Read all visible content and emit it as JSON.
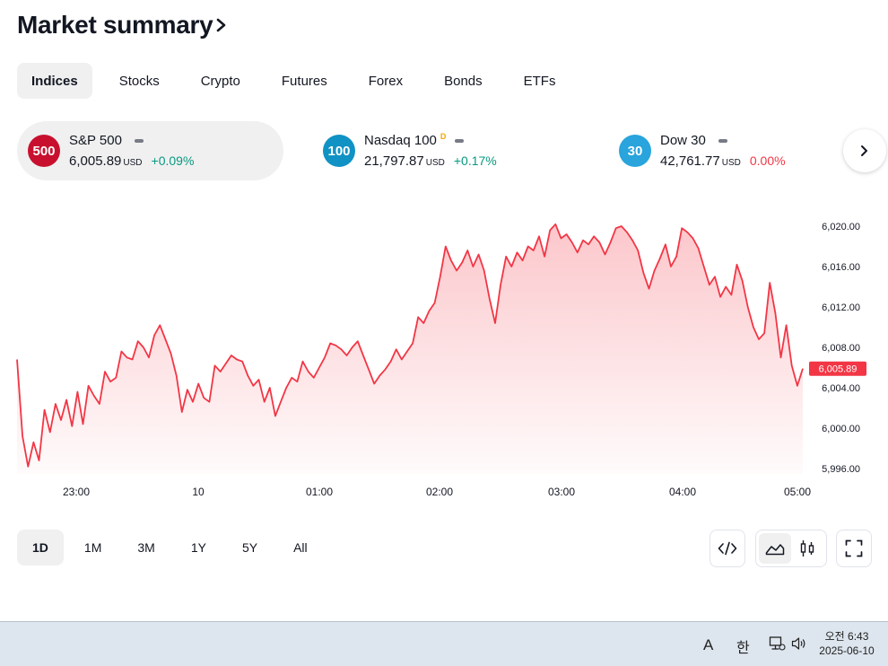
{
  "header": {
    "title": "Market summary"
  },
  "tabs": [
    {
      "label": "Indices",
      "active": true
    },
    {
      "label": "Stocks"
    },
    {
      "label": "Crypto"
    },
    {
      "label": "Futures"
    },
    {
      "label": "Forex"
    },
    {
      "label": "Bonds"
    },
    {
      "label": "ETFs"
    }
  ],
  "cards": [
    {
      "badge": "500",
      "badge_color": "#c8102e",
      "name": "S&P 500",
      "delayed": "",
      "value": "6,005.89",
      "unit": "USD",
      "change": "+0.09%",
      "change_dir": "pos",
      "active": true
    },
    {
      "badge": "100",
      "badge_color": "#1192c4",
      "name": "Nasdaq 100",
      "delayed": "D",
      "value": "21,797.87",
      "unit": "USD",
      "change": "+0.17%",
      "change_dir": "pos"
    },
    {
      "badge": "30",
      "badge_color": "#29a4dc",
      "name": "Dow 30",
      "delayed": "",
      "value": "42,761.77",
      "unit": "USD",
      "change": "0.00%",
      "change_dir": "neg"
    }
  ],
  "chart_data": {
    "type": "area",
    "title": "",
    "series_name": "",
    "x_ticks": [
      "23:00",
      "10",
      "01:00",
      "02:00",
      "03:00",
      "04:00",
      "05:00"
    ],
    "y_ticks": [
      "6,020.00",
      "6,016.00",
      "6,012.00",
      "6,008.00",
      "6,004.00",
      "6,000.00",
      "5,996.00"
    ],
    "ylim": [
      5996,
      6020
    ],
    "last_value": 6005.89,
    "last_label": "6,005.89",
    "line_color": "#f23645",
    "values": [
      6006.8,
      5999.2,
      5996.2,
      5998.6,
      5996.8,
      6001.8,
      5999.6,
      6002.4,
      6000.8,
      6002.8,
      6000.2,
      6003.6,
      6000.4,
      6004.2,
      6003.2,
      6002.4,
      6005.6,
      6004.6,
      6005.0,
      6007.6,
      6007.0,
      6006.8,
      6008.6,
      6008.0,
      6007.0,
      6009.2,
      6010.2,
      6008.8,
      6007.4,
      6005.2,
      6001.6,
      6003.8,
      6002.6,
      6004.4,
      6003.0,
      6002.6,
      6006.2,
      6005.6,
      6006.4,
      6007.2,
      6006.8,
      6006.6,
      6005.2,
      6004.2,
      6004.8,
      6002.6,
      6004.0,
      6001.2,
      6002.6,
      6004.0,
      6005.0,
      6004.6,
      6006.6,
      6005.6,
      6005.0,
      6006.0,
      6007.0,
      6008.4,
      6008.2,
      6007.8,
      6007.2,
      6008.0,
      6008.6,
      6007.2,
      6005.8,
      6004.4,
      6005.2,
      6005.8,
      6006.6,
      6007.8,
      6006.8,
      6007.6,
      6008.4,
      6011.0,
      6010.4,
      6011.6,
      6012.4,
      6015.0,
      6018.0,
      6016.6,
      6015.6,
      6016.4,
      6017.6,
      6016.0,
      6017.2,
      6015.6,
      6012.8,
      6010.4,
      6014.2,
      6017.0,
      6016.0,
      6017.4,
      6016.6,
      6018.0,
      6017.6,
      6019.0,
      6017.0,
      6019.6,
      6020.2,
      6018.8,
      6019.2,
      6018.4,
      6017.4,
      6018.6,
      6018.2,
      6019.0,
      6018.4,
      6017.2,
      6018.4,
      6019.8,
      6020.0,
      6019.4,
      6018.6,
      6017.6,
      6015.4,
      6013.8,
      6015.6,
      6016.8,
      6018.2,
      6016.0,
      6017.0,
      6019.8,
      6019.4,
      6018.8,
      6017.8,
      6016.0,
      6014.2,
      6015.0,
      6013.0,
      6014.0,
      6013.2,
      6016.2,
      6014.6,
      6012.0,
      6010.0,
      6008.8,
      6009.4,
      6014.4,
      6011.4,
      6007.0,
      6010.2,
      6006.2,
      6004.2,
      6005.9
    ]
  },
  "ranges": [
    {
      "label": "1D",
      "active": true
    },
    {
      "label": "1M"
    },
    {
      "label": "3M"
    },
    {
      "label": "1Y"
    },
    {
      "label": "5Y"
    },
    {
      "label": "All"
    }
  ],
  "taskbar": {
    "ime_a": "A",
    "ime_han": "한",
    "time": "오전 6:43",
    "date": "2025-06-10"
  }
}
